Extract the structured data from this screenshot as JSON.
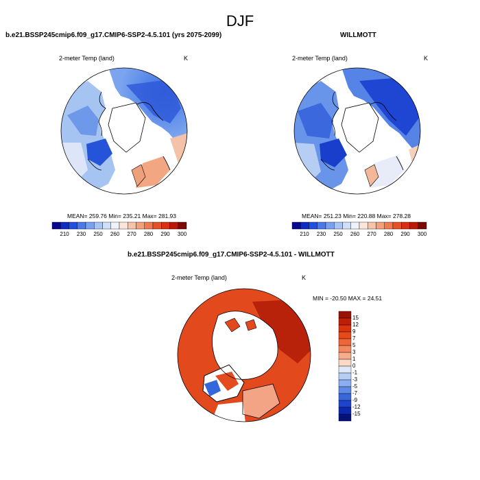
{
  "figure": {
    "season_title": "DJF"
  },
  "panels": [
    {
      "id": "model",
      "title": "b.e21.BSSP245cmip6.f09_g17.CMIP6-SSP2-4.5.101 (yrs 2075-2099)",
      "variable": "2-meter Temp (land)",
      "units": "K",
      "stats": "MEAN= 259.76  Min= 235.21  Max= 281.93"
    },
    {
      "id": "obs",
      "title": "WILLMOTT",
      "variable": "2-meter Temp (land)",
      "units": "K",
      "stats": "MEAN= 251.23  Min= 220.88  Max= 278.28"
    },
    {
      "id": "diff",
      "title": "b.e21.BSSP245cmip6.f09_g17.CMIP6-SSP2-4.5.101 - WILLMOTT",
      "variable": "2-meter Temp (land)",
      "units": "K",
      "stats": "MIN = -20.50 MAX =  24.51"
    }
  ],
  "abs_colorbar": {
    "labels": [
      "210",
      "230",
      "250",
      "260",
      "270",
      "280",
      "290",
      "300"
    ],
    "colors": [
      "#08088f",
      "#0c2cc4",
      "#2050e0",
      "#4a7ae8",
      "#7aa0f0",
      "#a8c4f4",
      "#d0e0f8",
      "#eef2fb",
      "#fbe6da",
      "#f8c4a8",
      "#f4a07a",
      "#ee7a50",
      "#e65228",
      "#d83010",
      "#b81a06",
      "#7a0a04"
    ]
  },
  "diff_colorbar": {
    "labels": [
      "15",
      "12",
      "9",
      "7",
      "5",
      "3",
      "1",
      "0",
      "-1",
      "-3",
      "-5",
      "-7",
      "-9",
      "-12",
      "-15"
    ],
    "colors": [
      "#9a1205",
      "#c01e08",
      "#dc330f",
      "#e9481a",
      "#ee6538",
      "#f3895f",
      "#f7ad8c",
      "#fbd8c6",
      "#dce8f8",
      "#b6cdf4",
      "#8aaef0",
      "#5e8ae6",
      "#3866dc",
      "#1c44cc",
      "#0c28b0",
      "#06127a"
    ]
  }
}
